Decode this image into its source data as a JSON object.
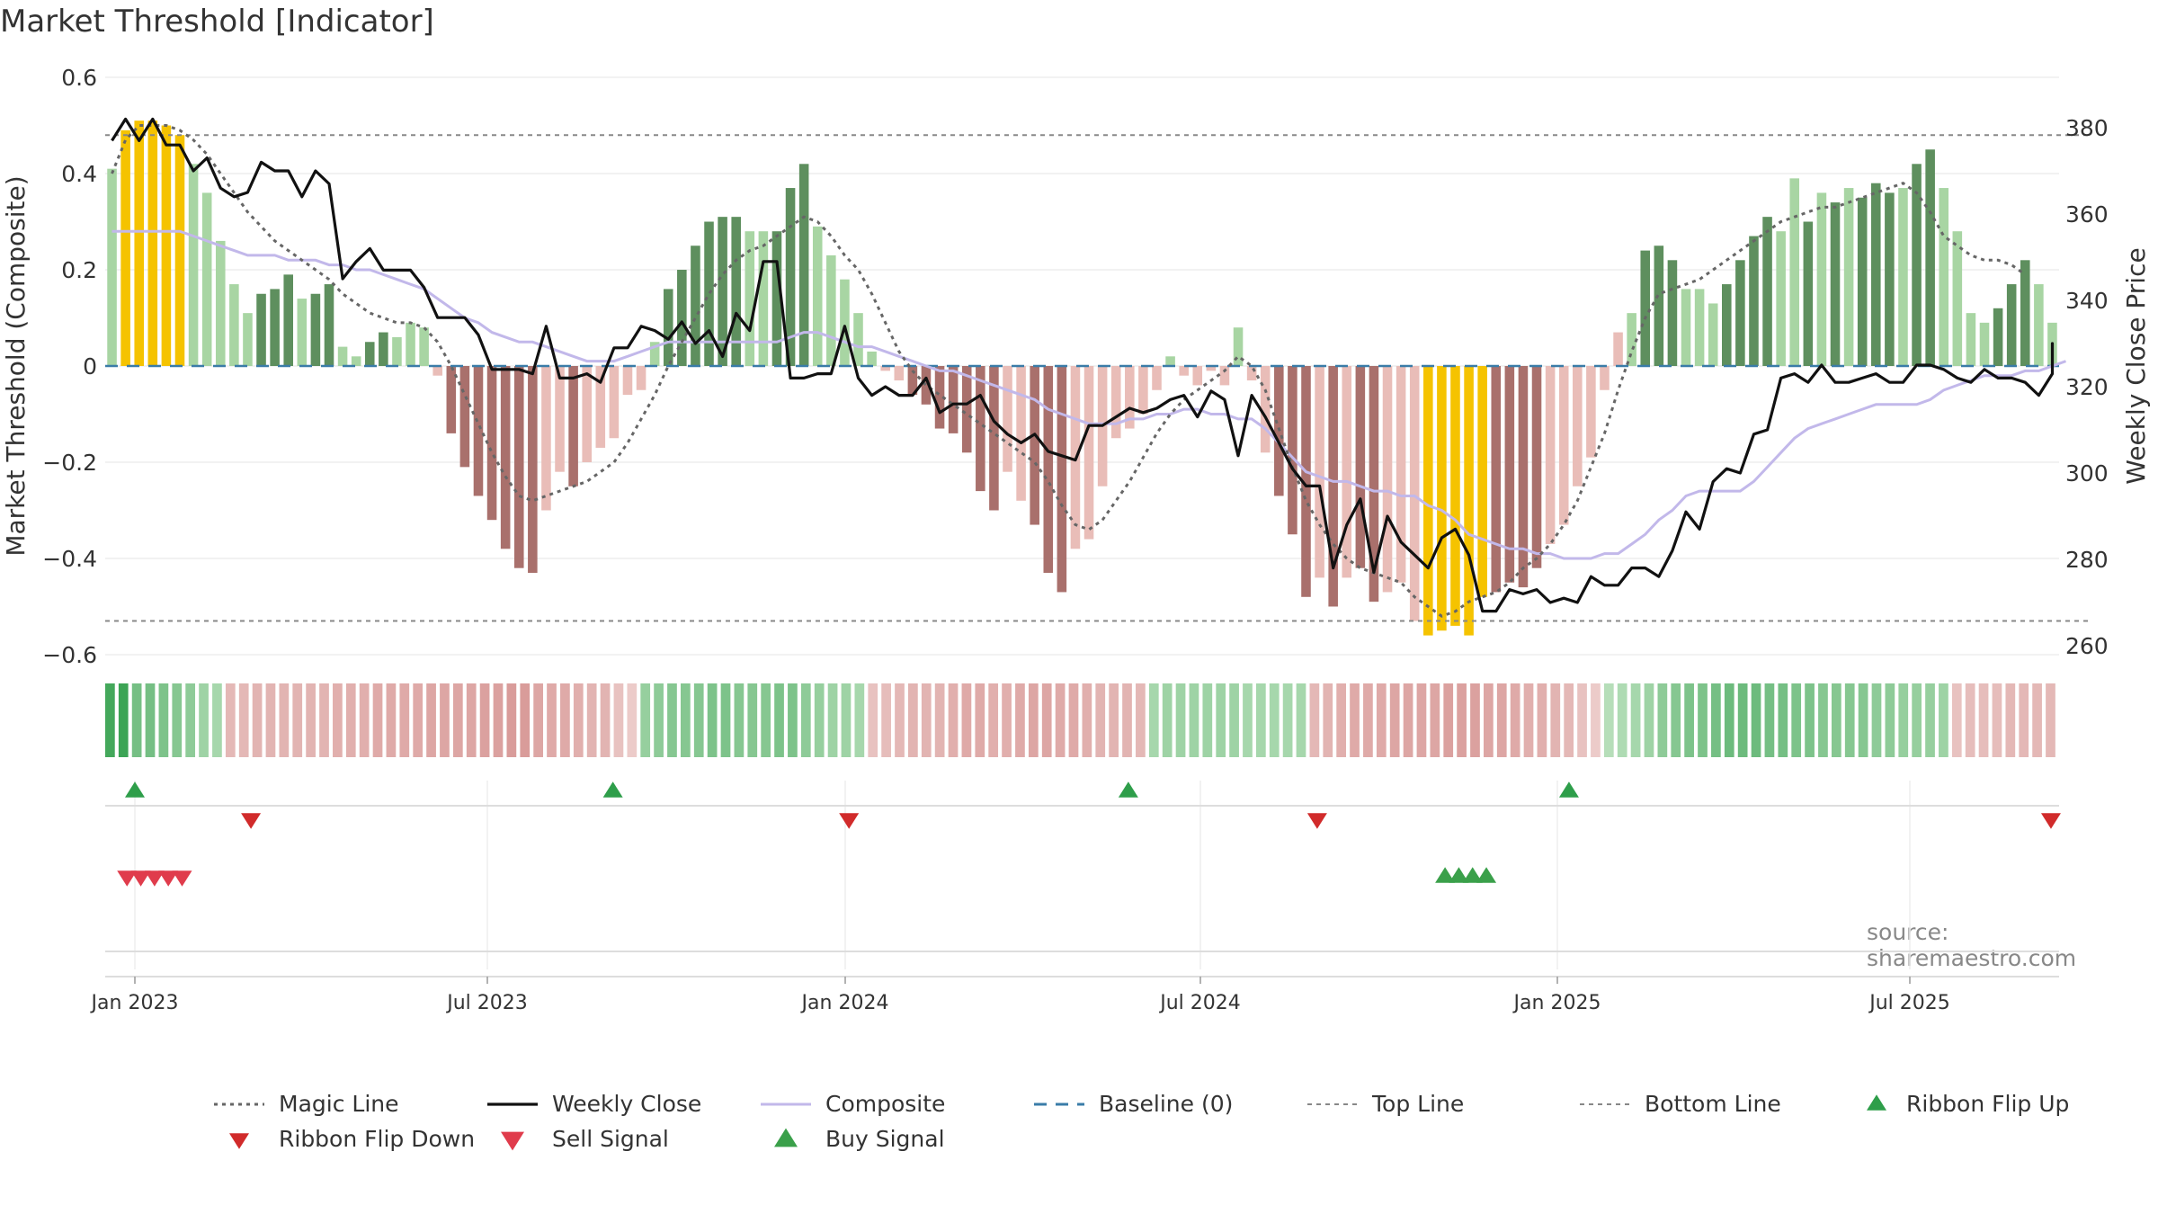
{
  "chart_data": {
    "type": "bar",
    "title": "Market Threshold [Indicator]",
    "ylabel": "Market Threshold (Composite)",
    "y2label": "Weekly Close Price",
    "ylim": [
      -0.6,
      0.6
    ],
    "y2lim": [
      255,
      385
    ],
    "yticks": [
      "0.6",
      "0.4",
      "0.2",
      "0",
      "−0.2",
      "−0.4",
      "−0.6"
    ],
    "y2ticks": [
      "380",
      "360",
      "340",
      "320",
      "300",
      "280",
      "260"
    ],
    "xticks": [
      "Jan 2023",
      "Jul 2023",
      "Jan 2024",
      "Jul 2024",
      "Jan 2025",
      "Jul 2025"
    ],
    "top_line": 0.48,
    "bottom_line": -0.53,
    "composite_bars": [
      0.41,
      0.49,
      0.51,
      0.51,
      0.5,
      0.48,
      0.42,
      0.36,
      0.26,
      0.17,
      0.11,
      0.15,
      0.16,
      0.19,
      0.14,
      0.15,
      0.17,
      0.04,
      0.02,
      0.05,
      0.07,
      0.06,
      0.09,
      0.08,
      -0.02,
      -0.14,
      -0.21,
      -0.27,
      -0.32,
      -0.38,
      -0.42,
      -0.43,
      -0.3,
      -0.22,
      -0.25,
      -0.2,
      -0.17,
      -0.15,
      -0.06,
      -0.05,
      0.05,
      0.16,
      0.2,
      0.25,
      0.3,
      0.31,
      0.31,
      0.28,
      0.28,
      0.28,
      0.37,
      0.42,
      0.29,
      0.23,
      0.18,
      0.11,
      0.03,
      -0.01,
      -0.03,
      -0.06,
      -0.08,
      -0.13,
      -0.14,
      -0.18,
      -0.26,
      -0.3,
      -0.22,
      -0.28,
      -0.33,
      -0.43,
      -0.47,
      -0.38,
      -0.36,
      -0.25,
      -0.15,
      -0.13,
      -0.1,
      -0.05,
      0.02,
      -0.02,
      -0.04,
      -0.01,
      -0.04,
      0.08,
      -0.03,
      -0.18,
      -0.27,
      -0.35,
      -0.48,
      -0.44,
      -0.5,
      -0.44,
      -0.42,
      -0.49,
      -0.47,
      -0.45,
      -0.53,
      -0.56,
      -0.55,
      -0.54,
      -0.56,
      -0.48,
      -0.47,
      -0.45,
      -0.46,
      -0.42,
      -0.37,
      -0.33,
      -0.25,
      -0.19,
      -0.05,
      0.07,
      0.11,
      0.24,
      0.25,
      0.22,
      0.16,
      0.16,
      0.13,
      0.17,
      0.22,
      0.27,
      0.31,
      0.28,
      0.39,
      0.3,
      0.36,
      0.34,
      0.37,
      0.35,
      0.38,
      0.36,
      0.37,
      0.42,
      0.45,
      0.37,
      0.28,
      0.11,
      0.09,
      0.12,
      0.17,
      0.22,
      0.17,
      0.09
    ],
    "composite_bar_tones": [
      "lg",
      "y",
      "y",
      "y",
      "y",
      "y",
      "lg",
      "lg",
      "lg",
      "lg",
      "lg",
      "dg",
      "dg",
      "dg",
      "lg",
      "dg",
      "dg",
      "lg",
      "lg",
      "dg",
      "dg",
      "lg",
      "lg",
      "lg",
      "lr",
      "dr",
      "dr",
      "dr",
      "dr",
      "dr",
      "dr",
      "dr",
      "lr",
      "lr",
      "dr",
      "lr",
      "lr",
      "lr",
      "lr",
      "lr",
      "lg",
      "dg",
      "dg",
      "dg",
      "dg",
      "dg",
      "dg",
      "lg",
      "lg",
      "dg",
      "dg",
      "dg",
      "lg",
      "lg",
      "lg",
      "lg",
      "lg",
      "lr",
      "lr",
      "dr",
      "dr",
      "dr",
      "dr",
      "dr",
      "dr",
      "dr",
      "lr",
      "lr",
      "dr",
      "dr",
      "dr",
      "lr",
      "lr",
      "lr",
      "lr",
      "lr",
      "lr",
      "lr",
      "lg",
      "lr",
      "lr",
      "lr",
      "lr",
      "lg",
      "lr",
      "lr",
      "dr",
      "dr",
      "dr",
      "lr",
      "dr",
      "lr",
      "dr",
      "dr",
      "lr",
      "lr",
      "lr",
      "y",
      "y",
      "y",
      "y",
      "y",
      "dr",
      "dr",
      "dr",
      "dr",
      "lr",
      "lr",
      "lr",
      "lr",
      "lr",
      "lr",
      "lg",
      "dg",
      "dg",
      "dg",
      "lg",
      "lg",
      "lg",
      "dg",
      "dg",
      "dg",
      "dg",
      "lg",
      "lg",
      "dg",
      "lg",
      "dg",
      "lg",
      "dg",
      "dg",
      "dg",
      "lg",
      "dg",
      "dg",
      "lg",
      "lg",
      "lg",
      "lg",
      "dg",
      "dg",
      "dg",
      "lg",
      "lg"
    ],
    "weekly_close": [
      377,
      382,
      377,
      382,
      376,
      376,
      370,
      373,
      366,
      364,
      365,
      372,
      370,
      370,
      364,
      370,
      367,
      345,
      349,
      352,
      347,
      347,
      347,
      343,
      336,
      336,
      336,
      332,
      324,
      324,
      324,
      323,
      334,
      322,
      322,
      323,
      321,
      329,
      329,
      334,
      333,
      331,
      335,
      330,
      333,
      327,
      337,
      333,
      349,
      349,
      322,
      322,
      323,
      323,
      334,
      322,
      318,
      320,
      318,
      318,
      322,
      314,
      316,
      316,
      318,
      312,
      309,
      307,
      309,
      305,
      304,
      303,
      311,
      311,
      313,
      315,
      314,
      315,
      317,
      318,
      313,
      319,
      317,
      304,
      318,
      313,
      307,
      301,
      297,
      297,
      278,
      288,
      294,
      277,
      290,
      284,
      281,
      278,
      285,
      287,
      281,
      268,
      268,
      273,
      272,
      273,
      270,
      271,
      270,
      276,
      274,
      274,
      278,
      278,
      276,
      282,
      291,
      287,
      298,
      301,
      300,
      309,
      310,
      322,
      323,
      321,
      325,
      321,
      321,
      322,
      323,
      321,
      321,
      325,
      325,
      324,
      322,
      321,
      324,
      322,
      322,
      321,
      318,
      323,
      326,
      330,
      324
    ],
    "weekly_close_phase2": [
      270,
      273,
      269,
      268,
      273,
      269,
      273,
      285,
      279,
      282,
      300,
      292,
      304,
      301,
      310,
      305,
      296,
      298,
      305,
      303,
      303,
      324,
      325,
      327,
      324,
      324,
      324,
      327,
      327,
      325,
      320,
      320,
      322,
      331,
      331,
      331,
      328,
      328,
      323,
      328,
      333,
      336,
      332,
      327
    ],
    "composite_line": [
      0.28,
      0.28,
      0.28,
      0.28,
      0.28,
      0.28,
      0.27,
      0.26,
      0.25,
      0.24,
      0.23,
      0.23,
      0.23,
      0.22,
      0.22,
      0.22,
      0.21,
      0.21,
      0.2,
      0.2,
      0.19,
      0.18,
      0.17,
      0.16,
      0.14,
      0.12,
      0.1,
      0.09,
      0.07,
      0.06,
      0.05,
      0.05,
      0.04,
      0.03,
      0.02,
      0.01,
      0.01,
      0.01,
      0.02,
      0.03,
      0.04,
      0.05,
      0.05,
      0.05,
      0.05,
      0.05,
      0.05,
      0.05,
      0.05,
      0.05,
      0.06,
      0.07,
      0.07,
      0.06,
      0.05,
      0.04,
      0.04,
      0.03,
      0.02,
      0.01,
      0.0,
      -0.01,
      -0.01,
      -0.02,
      -0.03,
      -0.04,
      -0.05,
      -0.06,
      -0.07,
      -0.09,
      -0.1,
      -0.11,
      -0.12,
      -0.12,
      -0.12,
      -0.11,
      -0.11,
      -0.1,
      -0.1,
      -0.09,
      -0.09,
      -0.1,
      -0.1,
      -0.11,
      -0.11,
      -0.13,
      -0.16,
      -0.19,
      -0.22,
      -0.23,
      -0.24,
      -0.24,
      -0.25,
      -0.26,
      -0.26,
      -0.27,
      -0.27,
      -0.29,
      -0.3,
      -0.32,
      -0.35,
      -0.36,
      -0.37,
      -0.38,
      -0.38,
      -0.39,
      -0.39,
      -0.4,
      -0.4,
      -0.4,
      -0.39,
      -0.39,
      -0.37,
      -0.35,
      -0.32,
      -0.3,
      -0.27,
      -0.26,
      -0.26,
      -0.26,
      -0.26,
      -0.24,
      -0.21,
      -0.18,
      -0.15,
      -0.13,
      -0.12,
      -0.11,
      -0.1,
      -0.09,
      -0.08,
      -0.08,
      -0.08,
      -0.08,
      -0.07,
      -0.05,
      -0.04,
      -0.03,
      -0.02,
      -0.02,
      -0.02,
      -0.01,
      -0.01,
      0.0,
      0.01
    ],
    "magic_line": [
      0.4,
      0.47,
      0.5,
      0.5,
      0.5,
      0.49,
      0.47,
      0.44,
      0.4,
      0.36,
      0.32,
      0.29,
      0.26,
      0.24,
      0.22,
      0.2,
      0.18,
      0.15,
      0.13,
      0.11,
      0.1,
      0.09,
      0.09,
      0.08,
      0.05,
      0.0,
      -0.06,
      -0.12,
      -0.18,
      -0.23,
      -0.27,
      -0.28,
      -0.27,
      -0.26,
      -0.25,
      -0.24,
      -0.22,
      -0.2,
      -0.16,
      -0.11,
      -0.06,
      0.0,
      0.05,
      0.1,
      0.15,
      0.19,
      0.22,
      0.24,
      0.25,
      0.27,
      0.29,
      0.31,
      0.3,
      0.27,
      0.23,
      0.2,
      0.15,
      0.09,
      0.03,
      -0.01,
      -0.04,
      -0.06,
      -0.08,
      -0.1,
      -0.12,
      -0.14,
      -0.16,
      -0.18,
      -0.2,
      -0.24,
      -0.29,
      -0.33,
      -0.34,
      -0.32,
      -0.28,
      -0.24,
      -0.19,
      -0.14,
      -0.1,
      -0.07,
      -0.05,
      -0.03,
      -0.01,
      0.02,
      0.0,
      -0.05,
      -0.13,
      -0.21,
      -0.28,
      -0.33,
      -0.37,
      -0.4,
      -0.42,
      -0.43,
      -0.44,
      -0.45,
      -0.48,
      -0.5,
      -0.52,
      -0.51,
      -0.49,
      -0.48,
      -0.47,
      -0.45,
      -0.42,
      -0.4,
      -0.37,
      -0.33,
      -0.28,
      -0.21,
      -0.14,
      -0.05,
      0.03,
      0.1,
      0.15,
      0.16,
      0.17,
      0.18,
      0.2,
      0.22,
      0.24,
      0.26,
      0.28,
      0.3,
      0.31,
      0.32,
      0.33,
      0.33,
      0.34,
      0.35,
      0.36,
      0.37,
      0.38,
      0.36,
      0.32,
      0.27,
      0.25,
      0.23,
      0.22,
      0.22,
      0.21,
      0.19
    ],
    "ribbon": [
      0.9,
      0.95,
      0.6,
      0.6,
      0.55,
      0.5,
      0.45,
      0.35,
      0.3,
      -0.4,
      -0.4,
      -0.45,
      -0.45,
      -0.45,
      -0.45,
      -0.45,
      -0.45,
      -0.5,
      -0.5,
      -0.5,
      -0.55,
      -0.55,
      -0.55,
      -0.55,
      -0.6,
      -0.6,
      -0.6,
      -0.6,
      -0.65,
      -0.65,
      -0.7,
      -0.7,
      -0.6,
      -0.55,
      -0.55,
      -0.5,
      -0.45,
      -0.45,
      -0.3,
      -0.2,
      0.4,
      0.45,
      0.5,
      0.5,
      0.5,
      0.55,
      0.55,
      0.5,
      0.5,
      0.5,
      0.55,
      0.55,
      0.45,
      0.4,
      0.35,
      0.35,
      0.3,
      -0.3,
      -0.35,
      -0.4,
      -0.45,
      -0.45,
      -0.45,
      -0.5,
      -0.55,
      -0.55,
      -0.5,
      -0.5,
      -0.55,
      -0.6,
      -0.6,
      -0.55,
      -0.55,
      -0.5,
      -0.45,
      -0.45,
      -0.45,
      -0.4,
      0.3,
      0.35,
      0.35,
      0.35,
      0.35,
      0.35,
      0.35,
      0.3,
      0.3,
      0.3,
      0.3,
      0.3,
      -0.4,
      -0.45,
      -0.5,
      -0.55,
      -0.55,
      -0.55,
      -0.6,
      -0.6,
      -0.6,
      -0.6,
      -0.65,
      -0.65,
      -0.65,
      -0.6,
      -0.6,
      -0.55,
      -0.5,
      -0.5,
      -0.45,
      -0.4,
      -0.3,
      -0.2,
      0.2,
      0.25,
      0.3,
      0.35,
      0.45,
      0.5,
      0.55,
      0.55,
      0.6,
      0.65,
      0.65,
      0.65,
      0.6,
      0.6,
      0.55,
      0.55,
      0.5,
      0.5,
      0.5,
      0.5,
      0.45,
      0.45,
      0.4,
      0.4,
      0.4,
      0.35,
      -0.3,
      -0.35,
      -0.35,
      -0.35,
      -0.4,
      -0.4,
      -0.4,
      -0.4
    ],
    "ribbon_flip_up": [
      "2023-01-01",
      "2023-09-01",
      "2024-05-20",
      "2024-12-30"
    ],
    "ribbon_flip_down": [
      "2023-03-01",
      "2023-12-30",
      "2024-08-24",
      "2025-09-01"
    ],
    "sell_signal": [
      "2022-12-28",
      "2023-01-04",
      "2023-01-11",
      "2023-01-18",
      "2023-01-25"
    ],
    "buy_signal": [
      "2024-10-28",
      "2024-11-04",
      "2024-11-11",
      "2024-11-18"
    ],
    "series": [
      {
        "name": "Magic Line",
        "color": "#666666",
        "style": "dotted"
      },
      {
        "name": "Weekly Close",
        "color": "#111111",
        "style": "solid"
      },
      {
        "name": "Composite",
        "color": "#c2b8ea",
        "style": "solid"
      },
      {
        "name": "Baseline (0)",
        "color": "#3a7ca8",
        "style": "dashed"
      },
      {
        "name": "Top Line",
        "color": "#888888",
        "style": "dotted"
      },
      {
        "name": "Bottom Line",
        "color": "#888888",
        "style": "dotted"
      },
      {
        "name": "Ribbon Flip Up",
        "color": "#2e9e4a",
        "marker": "triangle-up"
      },
      {
        "name": "Ribbon Flip Down",
        "color": "#d12b2b",
        "marker": "triangle-down"
      },
      {
        "name": "Sell Signal",
        "color": "#e03c4c",
        "marker": "triangle-down"
      },
      {
        "name": "Buy Signal",
        "color": "#3aa04a",
        "marker": "triangle-up"
      }
    ],
    "bar_colors": {
      "dg": "#5e8f5e",
      "lg": "#a8d5a3",
      "dr": "#a9706c",
      "lr": "#e9bdb8",
      "y": "#f5c300"
    },
    "legend_placement": "bottom",
    "grid": true,
    "source": "source: sharemaestro.com"
  }
}
